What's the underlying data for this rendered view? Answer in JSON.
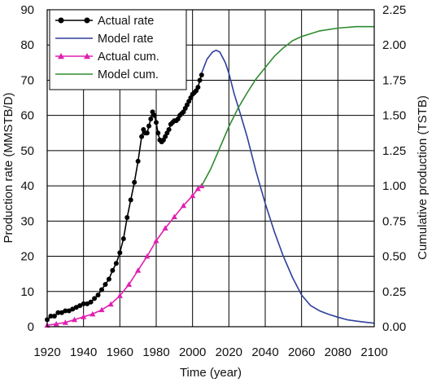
{
  "chart_data": {
    "type": "line",
    "xlabel": "Time (year)",
    "ylabel_left": "Production rate (MMSTB/D)",
    "ylabel_right": "Cumulative production (TSTB)",
    "xlim": [
      1920,
      2100
    ],
    "ylim_left": [
      0,
      90
    ],
    "ylim_right": [
      0,
      2.25
    ],
    "x_ticks": [
      "1920",
      "1940",
      "1960",
      "1980",
      "2000",
      "2020",
      "2040",
      "2060",
      "2080",
      "2100"
    ],
    "y_ticks_left": [
      "0",
      "10",
      "20",
      "30",
      "40",
      "50",
      "60",
      "70",
      "80",
      "90"
    ],
    "y_ticks_right": [
      "0.00",
      "0.25",
      "0.50",
      "0.75",
      "1.00",
      "1.25",
      "1.50",
      "1.75",
      "2.00",
      "2.25"
    ],
    "grid": true,
    "legend_position": "top-left",
    "series": [
      {
        "name": "Actual rate",
        "axis": "left",
        "color": "#000000",
        "marker": "circle",
        "x": [
          1920,
          1922,
          1924,
          1926,
          1928,
          1930,
          1932,
          1934,
          1936,
          1938,
          1940,
          1942,
          1944,
          1946,
          1948,
          1950,
          1952,
          1954,
          1956,
          1958,
          1960,
          1962,
          1964,
          1966,
          1968,
          1970,
          1972,
          1973,
          1974,
          1975,
          1976,
          1977,
          1978,
          1979,
          1980,
          1981,
          1982,
          1983,
          1984,
          1985,
          1986,
          1987,
          1988,
          1989,
          1990,
          1991,
          1992,
          1993,
          1994,
          1995,
          1996,
          1997,
          1998,
          1999,
          2000,
          2001,
          2002,
          2003,
          2004,
          2005
        ],
        "y": [
          2,
          3,
          3,
          4,
          4,
          4.5,
          4.5,
          5,
          5.5,
          6,
          6.5,
          6.5,
          7,
          8,
          9,
          10.5,
          12,
          13.5,
          16,
          18,
          21,
          25,
          31,
          36,
          41,
          47,
          54,
          56,
          55,
          55,
          57,
          59,
          61,
          60,
          58,
          55,
          53,
          52.5,
          53,
          54,
          55,
          56,
          57.5,
          58,
          58.5,
          58.5,
          59,
          60,
          60.5,
          61,
          62,
          63,
          64,
          65,
          66,
          66.5,
          67,
          68,
          70,
          71.5
        ]
      },
      {
        "name": "Model rate",
        "axis": "left",
        "color": "#2e3f9a",
        "marker": "none",
        "x": [
          2005,
          2008,
          2011,
          2013,
          2015,
          2018,
          2020,
          2023,
          2026,
          2030,
          2035,
          2040,
          2045,
          2050,
          2055,
          2060,
          2065,
          2070,
          2075,
          2080,
          2085,
          2090,
          2095,
          2100
        ],
        "y": [
          72,
          76,
          78,
          78.5,
          78,
          75,
          72,
          66,
          61,
          54,
          44,
          35,
          27,
          20,
          14,
          9,
          6,
          4.5,
          3.5,
          2.7,
          2,
          1.6,
          1.3,
          1
        ]
      },
      {
        "name": "Actual cum.",
        "axis": "right",
        "color": "#e020b0",
        "marker": "triangle",
        "x": [
          1920,
          1925,
          1930,
          1935,
          1940,
          1945,
          1950,
          1955,
          1960,
          1965,
          1970,
          1975,
          1980,
          1985,
          1990,
          1995,
          2000,
          2003,
          2005
        ],
        "y": [
          0.01,
          0.02,
          0.03,
          0.05,
          0.07,
          0.09,
          0.12,
          0.16,
          0.22,
          0.3,
          0.4,
          0.5,
          0.61,
          0.7,
          0.78,
          0.86,
          0.93,
          0.98,
          1.0
        ]
      },
      {
        "name": "Model cum.",
        "axis": "right",
        "color": "#2e8b2e",
        "marker": "none",
        "x": [
          2005,
          2010,
          2015,
          2020,
          2025,
          2030,
          2035,
          2040,
          2045,
          2050,
          2055,
          2060,
          2065,
          2070,
          2080,
          2090,
          2100
        ],
        "y": [
          1.0,
          1.12,
          1.27,
          1.42,
          1.55,
          1.66,
          1.76,
          1.84,
          1.92,
          1.98,
          2.03,
          2.06,
          2.08,
          2.1,
          2.12,
          2.13,
          2.13
        ]
      }
    ]
  }
}
